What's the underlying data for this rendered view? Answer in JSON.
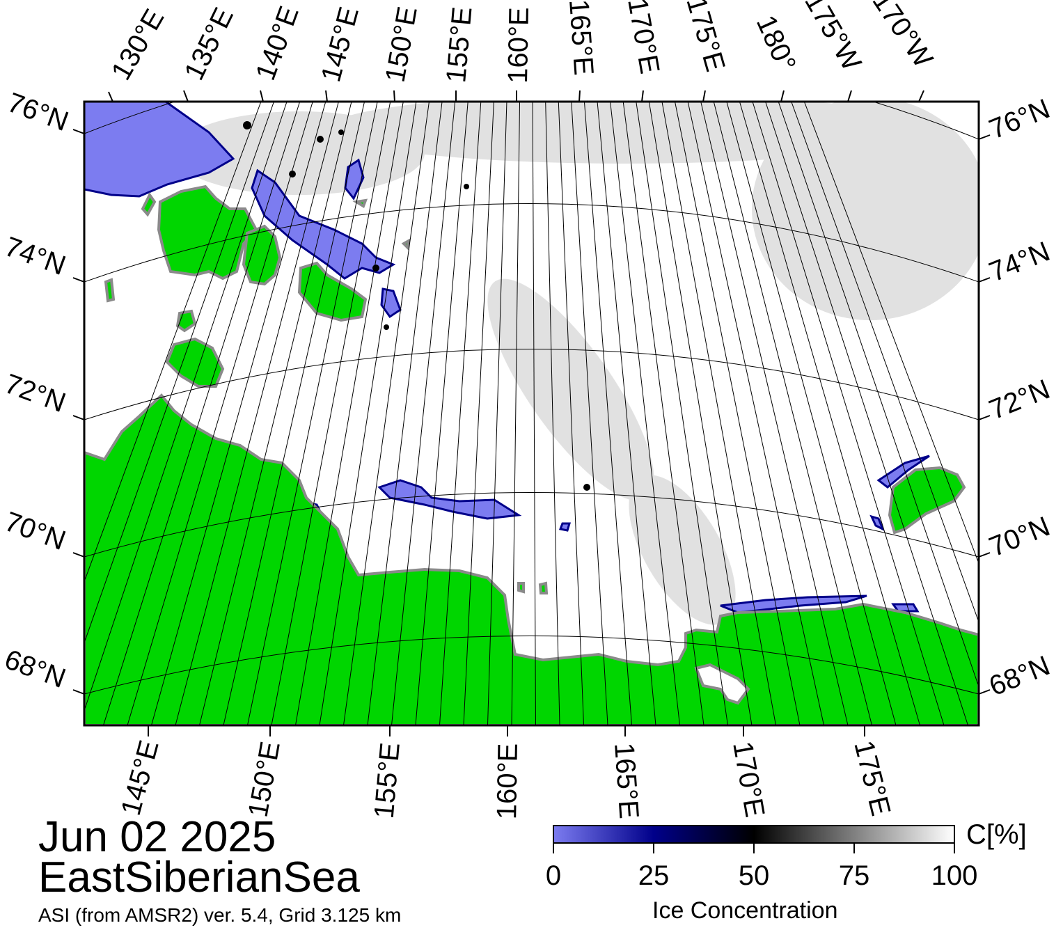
{
  "map": {
    "title_date": "Jun 02 2025",
    "region": "EastSiberianSea",
    "source": "ASI (from AMSR2) ver. 5.4,  Grid 3.125 km",
    "colors": {
      "land": "#00d600",
      "coast": "#8a8a8a",
      "open_water": "#ffffff",
      "low_ice": "#7c7cf0",
      "ice_50": "#000000",
      "ice_100": "#ffffff",
      "frame": "#000000"
    },
    "top_longitude_labels": [
      "130°E",
      "135°E",
      "140°E",
      "145°E",
      "150°E",
      "155°E",
      "160°E",
      "165°E",
      "170°E",
      "175°E",
      "180°",
      "175°W",
      "170°W"
    ],
    "bottom_longitude_labels": [
      "145°E",
      "150°E",
      "155°E",
      "160°E",
      "165°E",
      "170°E",
      "175°E"
    ],
    "left_latitude_labels": [
      "76°N",
      "74°N",
      "72°N",
      "70°N",
      "68°N"
    ],
    "right_latitude_labels": [
      "76°N",
      "74°N",
      "72°N",
      "70°N",
      "68°N"
    ]
  },
  "colorbar": {
    "title": "Ice Concentration",
    "unit": "C[%]",
    "ticks": [
      "0",
      "25",
      "50",
      "75",
      "100"
    ],
    "range": [
      0,
      100
    ]
  }
}
